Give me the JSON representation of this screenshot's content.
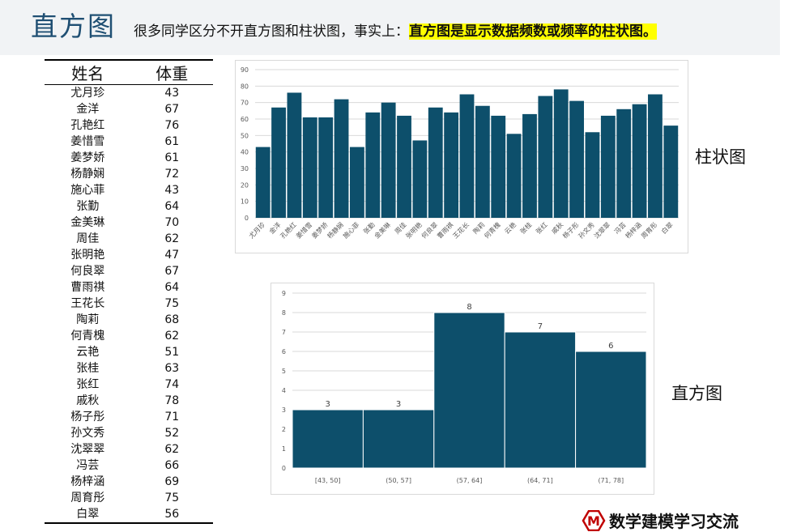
{
  "header": {
    "title": "直方图",
    "subtitle_prefix": "很多同学区分不开直方图和柱状图，事实上：",
    "subtitle_highlight": "直方图是显示数据频数或频率的柱状图。"
  },
  "table": {
    "columns": [
      "姓名",
      "体重"
    ],
    "rows": [
      [
        "尤月珍",
        "43"
      ],
      [
        "金洋",
        "67"
      ],
      [
        "孔艳红",
        "76"
      ],
      [
        "姜惜雪",
        "61"
      ],
      [
        "姜梦娇",
        "61"
      ],
      [
        "杨静娴",
        "72"
      ],
      [
        "施心菲",
        "43"
      ],
      [
        "张勤",
        "64"
      ],
      [
        "金美琳",
        "70"
      ],
      [
        "周佳",
        "62"
      ],
      [
        "张明艳",
        "47"
      ],
      [
        "何良翠",
        "67"
      ],
      [
        "曹雨祺",
        "64"
      ],
      [
        "王花长",
        "75"
      ],
      [
        "陶莉",
        "68"
      ],
      [
        "何青槐",
        "62"
      ],
      [
        "云艳",
        "51"
      ],
      [
        "张桂",
        "63"
      ],
      [
        "张红",
        "74"
      ],
      [
        "戚秋",
        "78"
      ],
      [
        "杨子彤",
        "71"
      ],
      [
        "孙文秀",
        "52"
      ],
      [
        "沈翠翠",
        "62"
      ],
      [
        "冯芸",
        "66"
      ],
      [
        "杨梓涵",
        "69"
      ],
      [
        "周育彤",
        "75"
      ],
      [
        "白翠",
        "56"
      ]
    ]
  },
  "labels": {
    "bar_chart": "柱状图",
    "histogram": "直方图"
  },
  "watermark": {
    "logo_letter": "M",
    "text": "数学建模学习交流"
  },
  "colors": {
    "bar": "#0d4f6b",
    "title": "#1f4f73",
    "highlight": "#ffff00"
  },
  "chart_data": [
    {
      "type": "bar",
      "categories": [
        "尤月珍",
        "金洋",
        "孔艳红",
        "姜惜雪",
        "姜梦娇",
        "杨静娴",
        "施心菲",
        "张勤",
        "金美琳",
        "周佳",
        "张明艳",
        "何良翠",
        "曹雨祺",
        "王花长",
        "陶莉",
        "何青槐",
        "云艳",
        "张桂",
        "张红",
        "戚秋",
        "杨子彤",
        "孙文秀",
        "沈翠翠",
        "冯芸",
        "杨梓涵",
        "周育彤",
        "白翠"
      ],
      "values": [
        43,
        67,
        76,
        61,
        61,
        72,
        43,
        64,
        70,
        62,
        47,
        67,
        64,
        75,
        68,
        62,
        51,
        63,
        74,
        78,
        71,
        52,
        62,
        66,
        69,
        75,
        56
      ],
      "ylim": [
        0,
        90
      ],
      "yticks": [
        0,
        10,
        20,
        30,
        40,
        50,
        60,
        70,
        80,
        90
      ],
      "grid": true
    },
    {
      "type": "bar",
      "categories": [
        "[43, 50]",
        "(50, 57]",
        "(57, 64]",
        "(64, 71]",
        "(71, 78]"
      ],
      "values": [
        3,
        3,
        8,
        7,
        6
      ],
      "ylim": [
        0,
        9
      ],
      "yticks": [
        0,
        1,
        2,
        3,
        4,
        5,
        6,
        7,
        8,
        9
      ],
      "grid": true,
      "data_labels": true
    }
  ]
}
